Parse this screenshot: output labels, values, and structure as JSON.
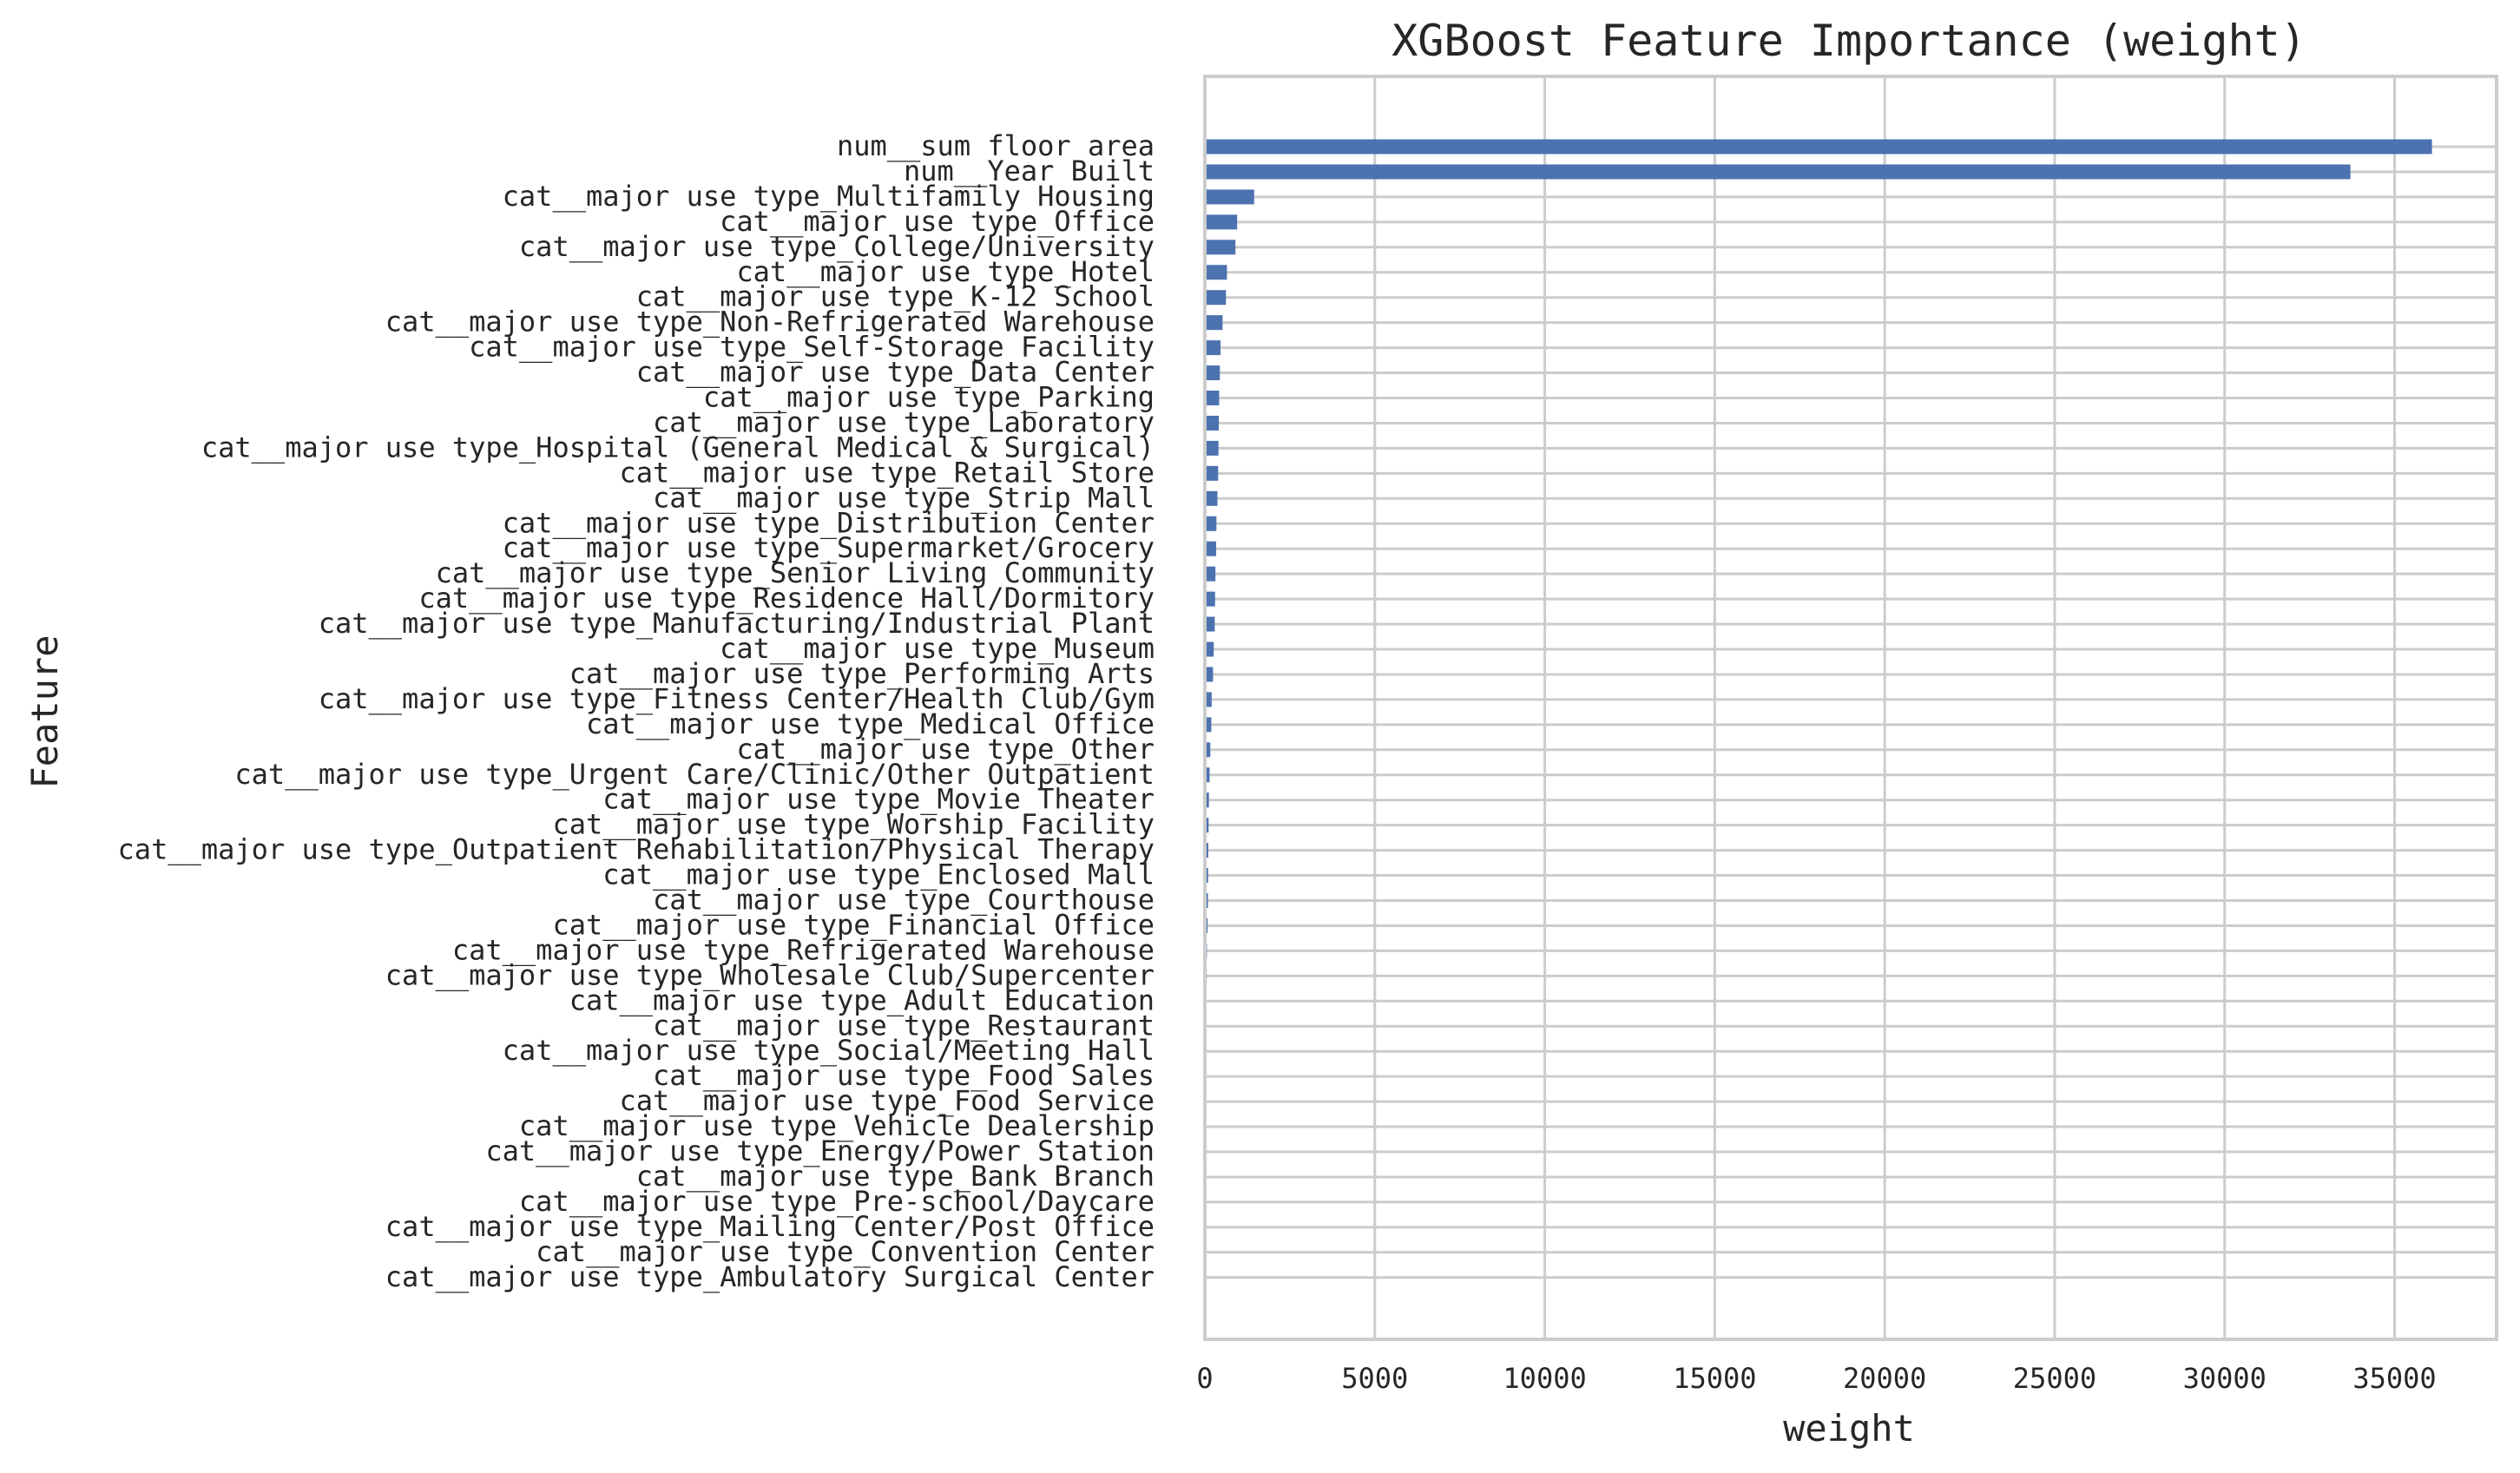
{
  "chart_data": {
    "type": "bar",
    "orientation": "horizontal",
    "title": "XGBoost Feature Importance (weight)",
    "xlabel": "weight",
    "ylabel": "Feature",
    "xlim": [
      0,
      38000
    ],
    "xticks": [
      0,
      5000,
      10000,
      15000,
      20000,
      25000,
      30000,
      35000
    ],
    "grid": true,
    "bar_color": "#4c72b0",
    "categories": [
      "num__sum floor area",
      "num__Year Built",
      "cat__major use type_Multifamily Housing",
      "cat__major use type_Office",
      "cat__major use type_College/University",
      "cat__major use type_Hotel",
      "cat__major use type_K-12 School",
      "cat__major use type_Non-Refrigerated Warehouse",
      "cat__major use type_Self-Storage Facility",
      "cat__major use type_Data Center",
      "cat__major use type_Parking",
      "cat__major use type_Laboratory",
      "cat__major use type_Hospital (General Medical & Surgical)",
      "cat__major use type_Retail Store",
      "cat__major use type_Strip Mall",
      "cat__major use type_Distribution Center",
      "cat__major use type_Supermarket/Grocery",
      "cat__major use type_Senior Living Community",
      "cat__major use type_Residence Hall/Dormitory",
      "cat__major use type_Manufacturing/Industrial Plant",
      "cat__major use type_Museum",
      "cat__major use type_Performing Arts",
      "cat__major use type_Fitness Center/Health Club/Gym",
      "cat__major use type_Medical Office",
      "cat__major use type_Other",
      "cat__major use type_Urgent Care/Clinic/Other Outpatient",
      "cat__major use type_Movie Theater",
      "cat__major use type_Worship Facility",
      "cat__major use type_Outpatient Rehabilitation/Physical Therapy",
      "cat__major use type_Enclosed Mall",
      "cat__major use type_Courthouse",
      "cat__major use type_Financial Office",
      "cat__major use type_Refrigerated Warehouse",
      "cat__major use type_Wholesale Club/Supercenter",
      "cat__major use type_Adult Education",
      "cat__major use type_Restaurant",
      "cat__major use type_Social/Meeting Hall",
      "cat__major use type_Food Sales",
      "cat__major use type_Food Service",
      "cat__major use type_Vehicle Dealership",
      "cat__major use type_Energy/Power Station",
      "cat__major use type_Bank Branch",
      "cat__major use type_Pre-school/Daycare",
      "cat__major use type_Mailing Center/Post Office",
      "cat__major use type_Convention Center",
      "cat__major use type_Ambulatory Surgical Center"
    ],
    "values": [
      36100,
      33700,
      1450,
      950,
      900,
      650,
      620,
      520,
      460,
      440,
      420,
      410,
      400,
      390,
      370,
      340,
      330,
      310,
      300,
      290,
      260,
      240,
      200,
      190,
      160,
      140,
      120,
      110,
      100,
      95,
      90,
      80,
      60,
      55,
      50,
      45,
      40,
      35,
      30,
      28,
      25,
      20,
      15,
      12,
      10,
      8
    ]
  }
}
